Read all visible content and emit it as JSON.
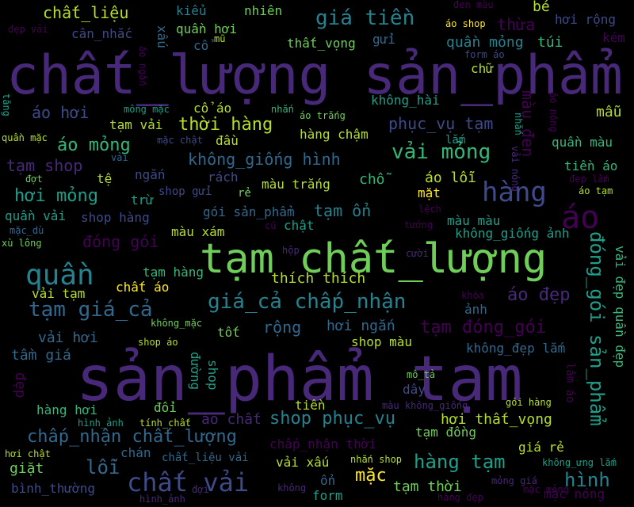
{
  "colors": {
    "background": "#000000",
    "deep_purple": "#440154",
    "purple": "#482878",
    "indigo": "#3e4a89",
    "blue": "#31688e",
    "teal_blue": "#26828e",
    "teal": "#1f9e89",
    "green": "#35b779",
    "light_green": "#6ece58",
    "yellow_green": "#b5de2b",
    "yellow": "#fde725"
  },
  "words": [
    {
      "text": "sản_phẩm tạm",
      "color": "#482878"
    },
    {
      "text": "chất_lượng sản_phẩm",
      "color": "#482878"
    },
    {
      "text": "tạm chất_lượng",
      "color": "#6ece58"
    },
    {
      "text": "áo",
      "color": "#440154"
    },
    {
      "text": "hàng",
      "color": "#3e4a89"
    },
    {
      "text": "quần",
      "color": "#26828e"
    },
    {
      "text": "chất vải",
      "color": "#3e4a89"
    },
    {
      "text": "giá_cả chấp_nhận",
      "color": "#26828e"
    },
    {
      "text": "tạm giá_cả",
      "color": "#31688e"
    },
    {
      "text": "vải mỏng",
      "color": "#35b779"
    },
    {
      "text": "đóng_gói sản_phẩm",
      "color": "#1f9e89"
    },
    {
      "text": "giá tiền",
      "color": "#26828e"
    },
    {
      "text": "chấp_nhận chất_lượng",
      "color": "#31688e"
    },
    {
      "text": "hàng tạm",
      "color": "#1f9e89"
    },
    {
      "text": "thời hàng",
      "color": "#b5de2b"
    },
    {
      "text": "áo mỏng",
      "color": "#35b779"
    },
    {
      "text": "hơi mỏng",
      "color": "#1f9e89"
    },
    {
      "text": "không_giống hình",
      "color": "#31688e"
    },
    {
      "text": "shop phục_vụ",
      "color": "#26828e"
    },
    {
      "text": "hình",
      "color": "#26828e"
    },
    {
      "text": "tạm đóng_gói",
      "color": "#440154"
    },
    {
      "text": "áo đẹp",
      "color": "#482878"
    },
    {
      "text": "tạm ổn",
      "color": "#26828e"
    },
    {
      "text": "đóng gói",
      "color": "#440154"
    },
    {
      "text": "tạm shop",
      "color": "#482878"
    },
    {
      "text": "áo hơi",
      "color": "#3e4a89"
    },
    {
      "text": "phục_vụ tạm",
      "color": "#3e4a89"
    },
    {
      "text": "chất_liệu",
      "color": "#b5de2b"
    },
    {
      "text": "vải đẹp quần đẹp",
      "color": "#35b779"
    },
    {
      "text": "thích thích",
      "color": "#b5de2b"
    },
    {
      "text": "mặc",
      "color": "#fde725"
    },
    {
      "text": "lỗi",
      "color": "#31688e"
    },
    {
      "text": "tầm giá",
      "color": "#31688e"
    },
    {
      "text": "vải hơi",
      "color": "#31688e"
    },
    {
      "text": "giặt",
      "color": "#6ece58"
    },
    {
      "text": "rộng",
      "color": "#31688e"
    },
    {
      "text": "hơi ngắn",
      "color": "#31688e"
    },
    {
      "text": "hơi thất_vọng",
      "color": "#b5de2b"
    },
    {
      "text": "quần mỏng",
      "color": "#26828e"
    },
    {
      "text": "túi",
      "color": "#35b779"
    },
    {
      "text": "màu đen",
      "color": "#440154"
    },
    {
      "text": "thừa",
      "color": "#440154"
    },
    {
      "text": "áo lỗi",
      "color": "#b5de2b"
    },
    {
      "text": "đẹp",
      "color": "#440154"
    },
    {
      "text": "hàng chậm",
      "color": "#b5de2b"
    },
    {
      "text": "chất áo",
      "color": "#fde725"
    },
    {
      "text": "shop màu",
      "color": "#b5de2b"
    },
    {
      "text": "hàng hơi",
      "color": "#35b779"
    },
    {
      "text": "tạm đồng",
      "color": "#6ece58"
    },
    {
      "text": "tạm thời",
      "color": "#6ece58"
    },
    {
      "text": "không_đẹp lắm",
      "color": "#31688e"
    },
    {
      "text": "mặc nóng",
      "color": "#440154"
    },
    {
      "text": "tiền",
      "color": "#b5de2b"
    },
    {
      "text": "dây",
      "color": "#3e4a89"
    },
    {
      "text": "đổi",
      "color": "#6ece58"
    },
    {
      "text": "áo chất",
      "color": "#482878"
    },
    {
      "text": "kiểu",
      "color": "#26828e"
    },
    {
      "text": "nhiên",
      "color": "#6ece58"
    },
    {
      "text": "bé",
      "color": "#b5de2b"
    },
    {
      "text": "hơi rộng",
      "color": "#3e4a89"
    },
    {
      "text": "kém",
      "color": "#440154"
    },
    {
      "text": "quần hơi",
      "color": "#6ece58"
    },
    {
      "text": "cân_nhắc",
      "color": "#3e4a89"
    },
    {
      "text": "thất_vọng",
      "color": "#6ece58"
    },
    {
      "text": "gửi",
      "color": "#31688e"
    },
    {
      "text": "mẫu",
      "color": "#b5de2b"
    },
    {
      "text": "không_hài",
      "color": "#1f9e89"
    },
    {
      "text": "tạm vải",
      "color": "#b5de2b"
    },
    {
      "text": "đầu",
      "color": "#b5de2b"
    },
    {
      "text": "màu trắng",
      "color": "#b5de2b"
    },
    {
      "text": "chỗ",
      "color": "#35b779"
    },
    {
      "text": "mặt",
      "color": "#fde725"
    },
    {
      "text": "shop gửi",
      "color": "#3e4a89"
    },
    {
      "text": "rách",
      "color": "#3e4a89"
    },
    {
      "text": "ngắn",
      "color": "#3e4a89"
    },
    {
      "text": "trừ",
      "color": "#1f9e89"
    },
    {
      "text": "quần vải",
      "color": "#1f9e89"
    },
    {
      "text": "shop hàng",
      "color": "#3e4a89"
    },
    {
      "text": "gói sản_phẩm",
      "color": "#31688e"
    },
    {
      "text": "màu xám",
      "color": "#b5de2b"
    },
    {
      "text": "chật",
      "color": "#1f9e89"
    },
    {
      "text": "màu màu",
      "color": "#1f9e89"
    },
    {
      "text": "không_giống ảnh",
      "color": "#1f9e89"
    },
    {
      "text": "tiền áo",
      "color": "#35b779"
    },
    {
      "text": "quần màu",
      "color": "#35b779"
    },
    {
      "text": "tạm hàng",
      "color": "#35b779"
    },
    {
      "text": "vải tạm",
      "color": "#b5de2b"
    },
    {
      "text": "tốt",
      "color": "#6ece58"
    },
    {
      "text": "ảnh",
      "color": "#31688e"
    },
    {
      "text": "đường",
      "color": "#1f9e89"
    },
    {
      "text": "shop",
      "color": "#1f9e89"
    },
    {
      "text": "form",
      "color": "#1f9e89"
    },
    {
      "text": "ổn",
      "color": "#31688e"
    },
    {
      "text": "chán",
      "color": "#31688e"
    },
    {
      "text": "bình_thường",
      "color": "#3e4a89"
    },
    {
      "text": "hơi chật",
      "color": "#b5de2b"
    },
    {
      "text": "vải xấu",
      "color": "#b5de2b"
    },
    {
      "text": "giá rẻ",
      "color": "#b5de2b"
    },
    {
      "text": "chấp_nhận thời",
      "color": "#440154"
    },
    {
      "text": "chất_liệu vải",
      "color": "#31688e"
    },
    {
      "text": "mặc mỏng",
      "color": "#440154"
    },
    {
      "text": "xấu",
      "color": "#31688e"
    },
    {
      "text": "cổ áo",
      "color": "#b5de2b"
    },
    {
      "text": "mũ",
      "color": "#b5de2b"
    },
    {
      "text": "cổ",
      "color": "#31688e"
    },
    {
      "text": "chữ",
      "color": "#b5de2b"
    },
    {
      "text": "áo shop",
      "color": "#fde725"
    },
    {
      "text": "đen màu",
      "color": "#440154"
    },
    {
      "text": "đẹp vải",
      "color": "#440154"
    },
    {
      "text": "form áo",
      "color": "#3e4a89"
    },
    {
      "text": "áo ngắn",
      "color": "#440154"
    },
    {
      "text": "tăng",
      "color": "#1f9e89"
    },
    {
      "text": "mông mặc",
      "color": "#1f9e89"
    },
    {
      "text": "nhắn",
      "color": "#35b779"
    },
    {
      "text": "áo trắng",
      "color": "#6ece58"
    },
    {
      "text": "mặc chật",
      "color": "#3e4a89"
    },
    {
      "text": "áo nóng",
      "color": "#440154"
    },
    {
      "text": "nhắn",
      "color": "#1f9e89"
    },
    {
      "text": "lắm",
      "color": "#1f9e89"
    },
    {
      "text": "quần mặc",
      "color": "#b5de2b"
    },
    {
      "text": "vải",
      "color": "#31688e"
    },
    {
      "text": "tệ",
      "color": "#b5de2b"
    },
    {
      "text": "đợt",
      "color": "#6ece58"
    },
    {
      "text": "rẻ",
      "color": "#6ece58"
    },
    {
      "text": "vải nóng",
      "color": "#482878"
    },
    {
      "text": "đẹp lắm",
      "color": "#440154"
    },
    {
      "text": "áo tạm",
      "color": "#b5de2b"
    },
    {
      "text": "lệch",
      "color": "#440154"
    },
    {
      "text": "cũ",
      "color": "#440154"
    },
    {
      "text": "tướng",
      "color": "#440154"
    },
    {
      "text": "mặc_dù",
      "color": "#31688e"
    },
    {
      "text": "xù lông",
      "color": "#6ece58"
    },
    {
      "text": "hộp",
      "color": "#482878"
    },
    {
      "text": "cười",
      "color": "#482878"
    },
    {
      "text": "khóa",
      "color": "#440154"
    },
    {
      "text": "không_mặc",
      "color": "#6ece58"
    },
    {
      "text": "shop áo",
      "color": "#b5de2b"
    },
    {
      "text": "mô_tả",
      "color": "#6ece58"
    },
    {
      "text": "gói hàng",
      "color": "#b5de2b"
    },
    {
      "text": "lâm áo",
      "color": "#440154"
    },
    {
      "text": "màu không_giống",
      "color": "#482878"
    },
    {
      "text": "hình_ảnh",
      "color": "#1f9e89"
    },
    {
      "text": "tính_chất",
      "color": "#b5de2b"
    },
    {
      "text": "nhắn shop",
      "color": "#b5de2b"
    },
    {
      "text": "không_ưng lắm",
      "color": "#1f9e89"
    },
    {
      "text": "không",
      "color": "#482878"
    },
    {
      "text": "đợi",
      "color": "#482878"
    },
    {
      "text": "mỏng giá",
      "color": "#482878"
    },
    {
      "text": "hình_ảnh",
      "color": "#482878"
    },
    {
      "text": "hàng đẹp",
      "color": "#440154"
    }
  ]
}
